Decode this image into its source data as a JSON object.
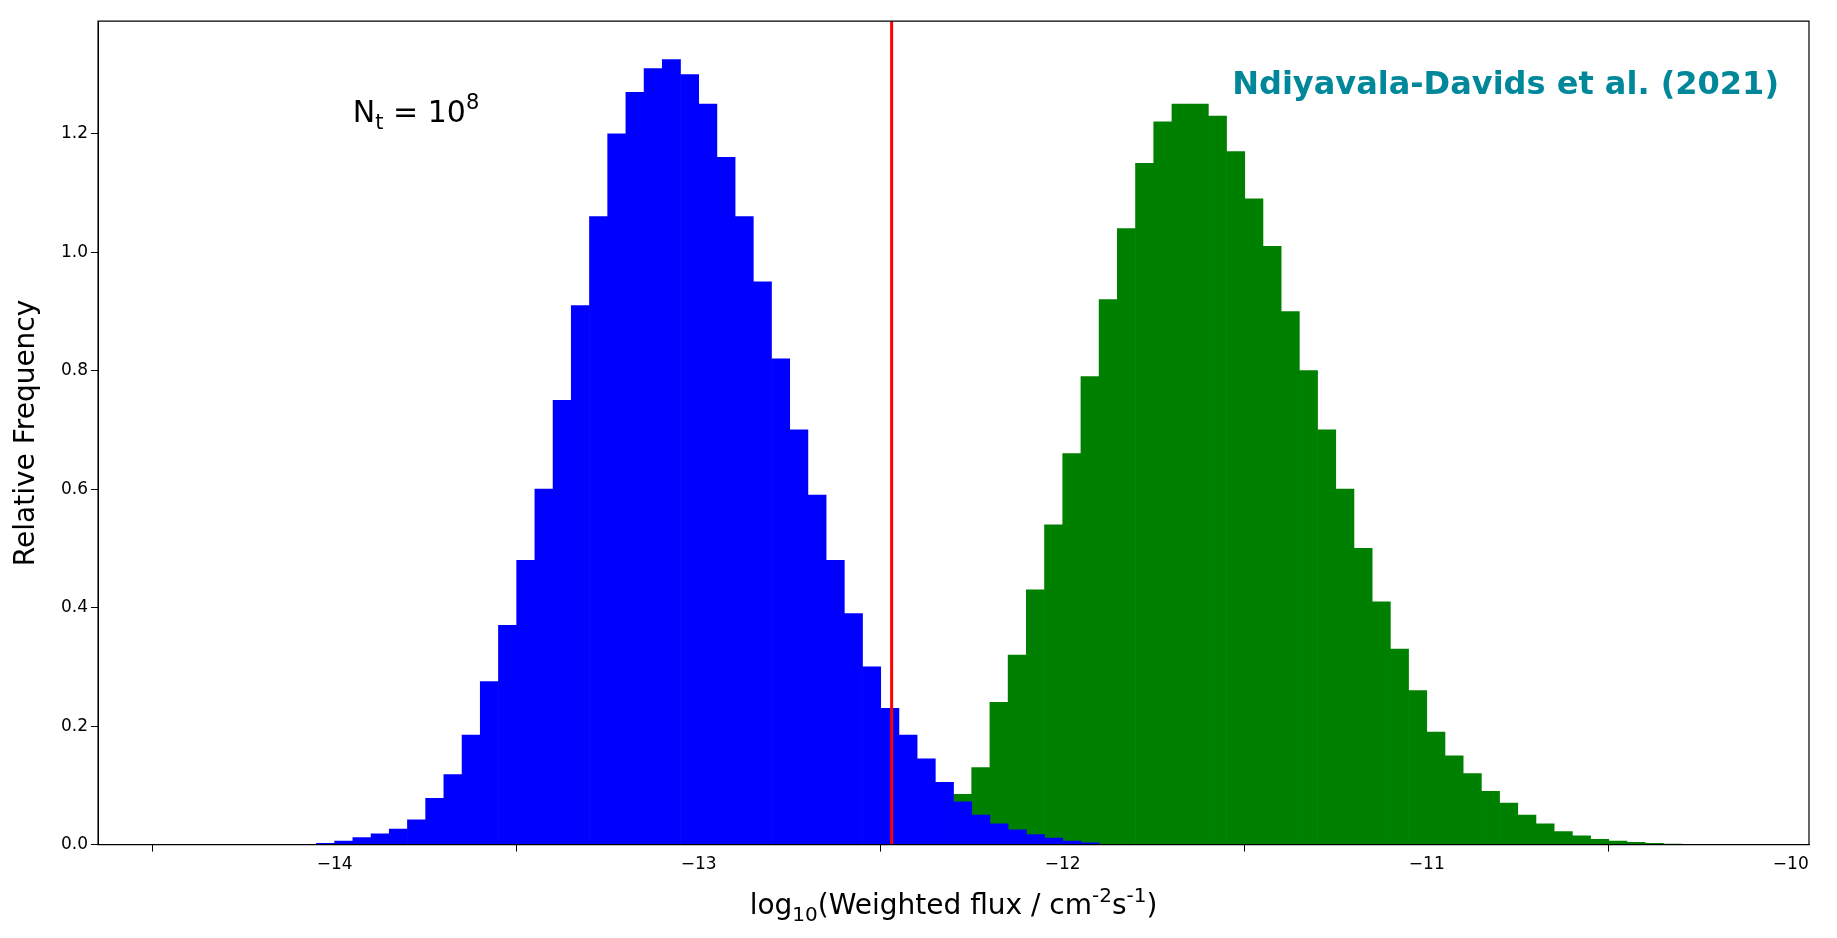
{
  "chart_data": {
    "type": "histogram",
    "xlabel": "log$_{10}$(Weighted flux / cm$^{-2}$s$^{-1}$)",
    "ylabel": "Relative Frequency",
    "annotations": [
      "N$_{t}$ = 10$^{8}$",
      "Ndiyavala-Davids et al. (2021)"
    ],
    "bins": [
      -14.05,
      -14.0,
      -13.95,
      -13.9,
      -13.85,
      -13.8,
      -13.75,
      -13.7,
      -13.65,
      -13.6,
      -13.55,
      -13.5,
      -13.45,
      -13.4,
      -13.35,
      -13.3,
      -13.25,
      -13.2,
      -13.15,
      -13.1,
      -13.05,
      -13.0,
      -12.95,
      -12.9,
      -12.85,
      -12.8,
      -12.75,
      -12.7,
      -12.65,
      -12.6,
      -12.55,
      -12.5,
      -12.45,
      -12.4,
      -12.35,
      -12.3,
      -12.25,
      -12.2,
      -12.15,
      -12.1,
      -12.05,
      -12.0,
      -11.95,
      -11.9,
      -11.85,
      -11.8,
      -11.75,
      -11.7,
      -11.65,
      -11.6,
      -11.55,
      -11.5,
      -11.45,
      -11.4,
      -11.35,
      -11.3,
      -11.25,
      -11.2,
      -11.15,
      -11.1,
      -11.05,
      -11.0,
      -10.95,
      -10.9,
      -10.85,
      -10.8,
      -10.75,
      -10.7,
      -10.65,
      -10.6,
      -10.55,
      -10.5,
      -10.45,
      -10.4,
      -10.35,
      -10.3
    ],
    "series": [
      {
        "color": "#0000ff",
        "values": [
          0.002,
          0.006,
          0.012,
          0.018,
          0.026,
          0.042,
          0.078,
          0.118,
          0.185,
          0.275,
          0.37,
          0.48,
          0.6,
          0.75,
          0.91,
          1.06,
          1.2,
          1.27,
          1.31,
          1.325,
          1.3,
          1.25,
          1.16,
          1.06,
          0.95,
          0.82,
          0.7,
          0.59,
          0.48,
          0.39,
          0.3,
          0.23,
          0.185,
          0.145,
          0.105,
          0.072,
          0.05,
          0.035,
          0.025,
          0.017,
          0.011,
          0.006,
          0.003,
          0,
          0,
          0,
          0,
          0,
          0,
          0,
          0,
          0,
          0,
          0,
          0,
          0,
          0,
          0,
          0,
          0,
          0,
          0,
          0,
          0,
          0,
          0,
          0,
          0,
          0,
          0,
          0,
          0,
          0,
          0,
          0
        ]
      },
      {
        "color": "#008000",
        "values": [
          0,
          0,
          0,
          0,
          0,
          0,
          0,
          0,
          0,
          0,
          0,
          0,
          0,
          0,
          0,
          0,
          0,
          0,
          0,
          0,
          0,
          0,
          0,
          0,
          0,
          0,
          0,
          0,
          0,
          0,
          0,
          0,
          0,
          0,
          0,
          0.085,
          0.13,
          0.24,
          0.32,
          0.43,
          0.54,
          0.66,
          0.79,
          0.92,
          1.04,
          1.15,
          1.22,
          1.25,
          1.25,
          1.23,
          1.17,
          1.09,
          1.01,
          0.9,
          0.8,
          0.7,
          0.6,
          0.5,
          0.41,
          0.33,
          0.26,
          0.19,
          0.15,
          0.12,
          0.09,
          0.07,
          0.05,
          0.035,
          0.022,
          0.015,
          0.009,
          0.006,
          0.004,
          0.002,
          0.001
        ]
      }
    ],
    "ref_lines": [
      {
        "axis": "x",
        "value": -12.47,
        "color": "#ff0000"
      }
    ],
    "xlim": [
      -14.65,
      -9.95
    ],
    "ylim": [
      0,
      1.39
    ],
    "xticks": [
      -14,
      -13,
      -12,
      -11,
      -10
    ],
    "yticks": [
      {
        "value": 0,
        "label": "0.0"
      },
      {
        "value": 0.2,
        "label": "0.2"
      },
      {
        "value": 0.4,
        "label": "0.4"
      },
      {
        "value": 0.6,
        "label": "0.6"
      },
      {
        "value": 0.8,
        "label": "0.8"
      },
      {
        "value": 1.0,
        "label": "1.0"
      },
      {
        "value": 1.2,
        "label": "1.2"
      }
    ],
    "grid": false,
    "legend": false
  }
}
